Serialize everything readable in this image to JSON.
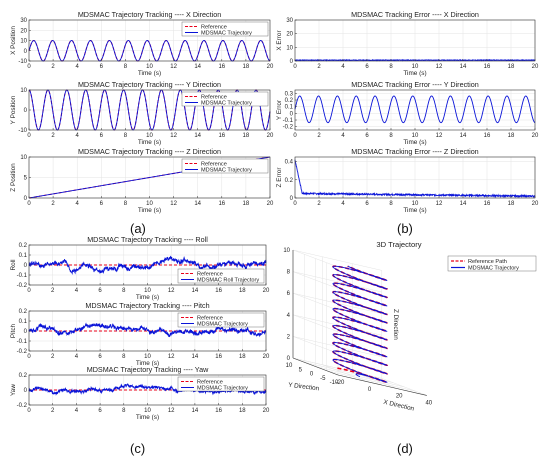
{
  "figure": {
    "panel_labels": [
      "(a)",
      "(b)",
      "(c)",
      "(d)"
    ]
  },
  "colors": {
    "reference": "#e8001a",
    "tracked": "#0a14d8",
    "grid": "#e3e3e3",
    "axis": "#333333"
  },
  "chart_data": [
    {
      "id": "a1",
      "type": "line",
      "title": "MDSMAC Trajectory Tracking ---- X Direction",
      "xlabel": "Time (s)",
      "ylabel": "X Position",
      "xlim": [
        0,
        20
      ],
      "ylim": [
        -10,
        30
      ],
      "xticks": [
        0,
        2,
        4,
        6,
        8,
        10,
        12,
        14,
        16,
        18,
        20
      ],
      "yticks": [
        -10,
        0,
        10,
        20,
        30
      ],
      "grid": true,
      "legend_position": "top-right",
      "series": [
        {
          "name": "Reference",
          "style": "dashed",
          "color": "#e8001a",
          "function": "sine",
          "amplitude": 10,
          "period": 1.57,
          "offset": 0,
          "phase": 0
        },
        {
          "name": "MDSMAC Trajectory",
          "style": "solid",
          "color": "#0a14d8",
          "function": "sine",
          "amplitude": 10,
          "period": 1.57,
          "offset": 0,
          "phase": 0
        }
      ]
    },
    {
      "id": "a2",
      "type": "line",
      "title": "MDSMAC Trajectory Tracking ---- Y Direction",
      "xlabel": "Time (s)",
      "ylabel": "Y Position",
      "xlim": [
        0,
        20
      ],
      "ylim": [
        -10,
        10
      ],
      "xticks": [
        0,
        2,
        4,
        6,
        8,
        10,
        12,
        14,
        16,
        18,
        20
      ],
      "yticks": [
        -10,
        0,
        10
      ],
      "grid": true,
      "legend_position": "top-right",
      "series": [
        {
          "name": "Reference",
          "style": "dashed",
          "color": "#e8001a",
          "function": "sine",
          "amplitude": 10,
          "period": 1.57,
          "offset": 0,
          "phase": 1.5708
        },
        {
          "name": "MDSMAC Trajectory",
          "style": "solid",
          "color": "#0a14d8",
          "function": "sine",
          "amplitude": 10,
          "period": 1.57,
          "offset": 0,
          "phase": 1.5708
        }
      ]
    },
    {
      "id": "a3",
      "type": "line",
      "title": "MDSMAC Trajectory Tracking ---- Z Direction",
      "xlabel": "Time (s)",
      "ylabel": "Z Position",
      "xlim": [
        0,
        20
      ],
      "ylim": [
        0,
        10
      ],
      "xticks": [
        0,
        2,
        4,
        6,
        8,
        10,
        12,
        14,
        16,
        18,
        20
      ],
      "yticks": [
        0,
        5,
        10
      ],
      "grid": true,
      "legend_position": "top-right",
      "series": [
        {
          "name": "Reference",
          "style": "dashed",
          "color": "#e8001a",
          "function": "linear",
          "x": [
            0,
            20
          ],
          "y": [
            0,
            10
          ]
        },
        {
          "name": "MDSMAC Trajectory",
          "style": "solid",
          "color": "#0a14d8",
          "function": "linear",
          "x": [
            0,
            20
          ],
          "y": [
            0,
            10
          ]
        }
      ]
    },
    {
      "id": "b1",
      "type": "line",
      "title": "MDSMAC Tracking Error ---- X Direction",
      "xlabel": "Time (s)",
      "ylabel": "X Error",
      "xlim": [
        0,
        20
      ],
      "ylim": [
        0,
        30
      ],
      "xticks": [
        0,
        2,
        4,
        6,
        8,
        10,
        12,
        14,
        16,
        18,
        20
      ],
      "yticks": [
        0,
        10,
        20,
        30
      ],
      "grid": true,
      "series": [
        {
          "color": "#0a14d8",
          "style": "solid",
          "function": "noise",
          "base": 0.6,
          "noise": 0.5,
          "seed": 11
        }
      ]
    },
    {
      "id": "b2",
      "type": "line",
      "title": "MDSMAC Tracking Error ---- Y Direction",
      "xlabel": "Time (s)",
      "ylabel": "Y Error",
      "xlim": [
        0,
        20
      ],
      "ylim": [
        -0.25,
        0.35
      ],
      "xticks": [
        0,
        2,
        4,
        6,
        8,
        10,
        12,
        14,
        16,
        18,
        20
      ],
      "yticks": [
        -0.2,
        -0.1,
        0,
        0.1,
        0.2,
        0.3
      ],
      "grid": true,
      "series": [
        {
          "color": "#0a14d8",
          "style": "solid",
          "function": "sine",
          "amplitude": 0.2,
          "period": 1.57,
          "offset": 0.06,
          "phase": 0
        }
      ]
    },
    {
      "id": "b3",
      "type": "line",
      "title": "MDSMAC Tracking Error ---- Z Direction",
      "xlabel": "Time (s)",
      "ylabel": "Z Error",
      "xlim": [
        0,
        20
      ],
      "ylim": [
        0,
        0.45
      ],
      "xticks": [
        0,
        2,
        4,
        6,
        8,
        10,
        12,
        14,
        16,
        18,
        20
      ],
      "yticks": [
        0,
        0.2,
        0.4
      ],
      "grid": true,
      "series": [
        {
          "color": "#0a14d8",
          "style": "solid",
          "function": "decay",
          "start": 0.42,
          "tail": 0.05,
          "end": 0.02,
          "noise": 0.008,
          "seed": 7
        }
      ]
    },
    {
      "id": "c1",
      "type": "line",
      "title": "MDSMAC Trajectory Tracking ---- Roll",
      "xlabel": "Time (s)",
      "ylabel": "Roll",
      "xlim": [
        0,
        20
      ],
      "ylim": [
        -0.2,
        0.2
      ],
      "xticks": [
        0,
        2,
        4,
        6,
        8,
        10,
        12,
        14,
        16,
        18,
        20
      ],
      "yticks": [
        -0.2,
        -0.1,
        0,
        0.1,
        0.2
      ],
      "grid": true,
      "legend_position": "bottom-right",
      "series": [
        {
          "name": "Reference",
          "style": "dashed",
          "color": "#e8001a",
          "function": "constant",
          "value": 0
        },
        {
          "name": "MDSMAC Roll Trajectory",
          "style": "solid",
          "color": "#0a14d8",
          "function": "walk",
          "scale": 0.08,
          "seed": 3
        }
      ]
    },
    {
      "id": "c2",
      "type": "line",
      "title": "MDSMAC Trajectory Tracking ---- Pitch",
      "xlabel": "Time (s)",
      "ylabel": "Pitch",
      "xlim": [
        0,
        20
      ],
      "ylim": [
        -0.2,
        0.2
      ],
      "xticks": [
        0,
        2,
        4,
        6,
        8,
        10,
        12,
        14,
        16,
        18,
        20
      ],
      "yticks": [
        -0.2,
        -0.1,
        0,
        0.1,
        0.2
      ],
      "grid": true,
      "legend_position": "top-right",
      "series": [
        {
          "name": "Reference",
          "style": "dashed",
          "color": "#e8001a",
          "function": "constant",
          "value": 0
        },
        {
          "name": "MDSMAC Trajectory",
          "style": "solid",
          "color": "#0a14d8",
          "function": "walk",
          "scale": 0.07,
          "seed": 5
        }
      ]
    },
    {
      "id": "c3",
      "type": "line",
      "title": "MDSMAC Trajectory Tracking ---- Yaw",
      "xlabel": "Time (s)",
      "ylabel": "Yaw",
      "xlim": [
        0,
        20
      ],
      "ylim": [
        -0.2,
        0.2
      ],
      "xticks": [
        0,
        2,
        4,
        6,
        8,
        10,
        12,
        14,
        16,
        18,
        20
      ],
      "yticks": [
        -0.2,
        0,
        0.2
      ],
      "grid": true,
      "legend_position": "top-right",
      "series": [
        {
          "name": "Reference",
          "style": "dashed",
          "color": "#e8001a",
          "function": "constant",
          "value": 0
        },
        {
          "name": "MDSMAC Trajectory",
          "style": "solid",
          "color": "#0a14d8",
          "function": "walk",
          "scale": 0.08,
          "seed": 9
        }
      ]
    },
    {
      "id": "d",
      "type": "line3d",
      "title": "3D Trajectory",
      "xlabel": "X Direction",
      "ylabel": "Y Direction",
      "zlabel": "Z Direction",
      "xlim": [
        -20,
        40
      ],
      "ylim": [
        -10,
        10
      ],
      "zlim": [
        0,
        10
      ],
      "xticks": [
        -20,
        0,
        20,
        40
      ],
      "yticks": [
        -10,
        -5,
        0,
        5,
        10
      ],
      "zticks": [
        0,
        2,
        4,
        6,
        8,
        10
      ],
      "grid": true,
      "legend_position": "top-right",
      "series": [
        {
          "name": "Reference Path",
          "style": "dashed",
          "color": "#e8001a",
          "x": "10*sin(4t)",
          "y": "10*cos(4t)",
          "z": "0.5*t",
          "t_range": [
            0,
            20
          ]
        },
        {
          "name": "MDSMAC Trajectory",
          "style": "solid",
          "color": "#0a14d8",
          "x": "10*sin(4t)",
          "y": "10*cos(4t)",
          "z": "0.5*t",
          "t_range": [
            0,
            20
          ]
        }
      ]
    }
  ]
}
